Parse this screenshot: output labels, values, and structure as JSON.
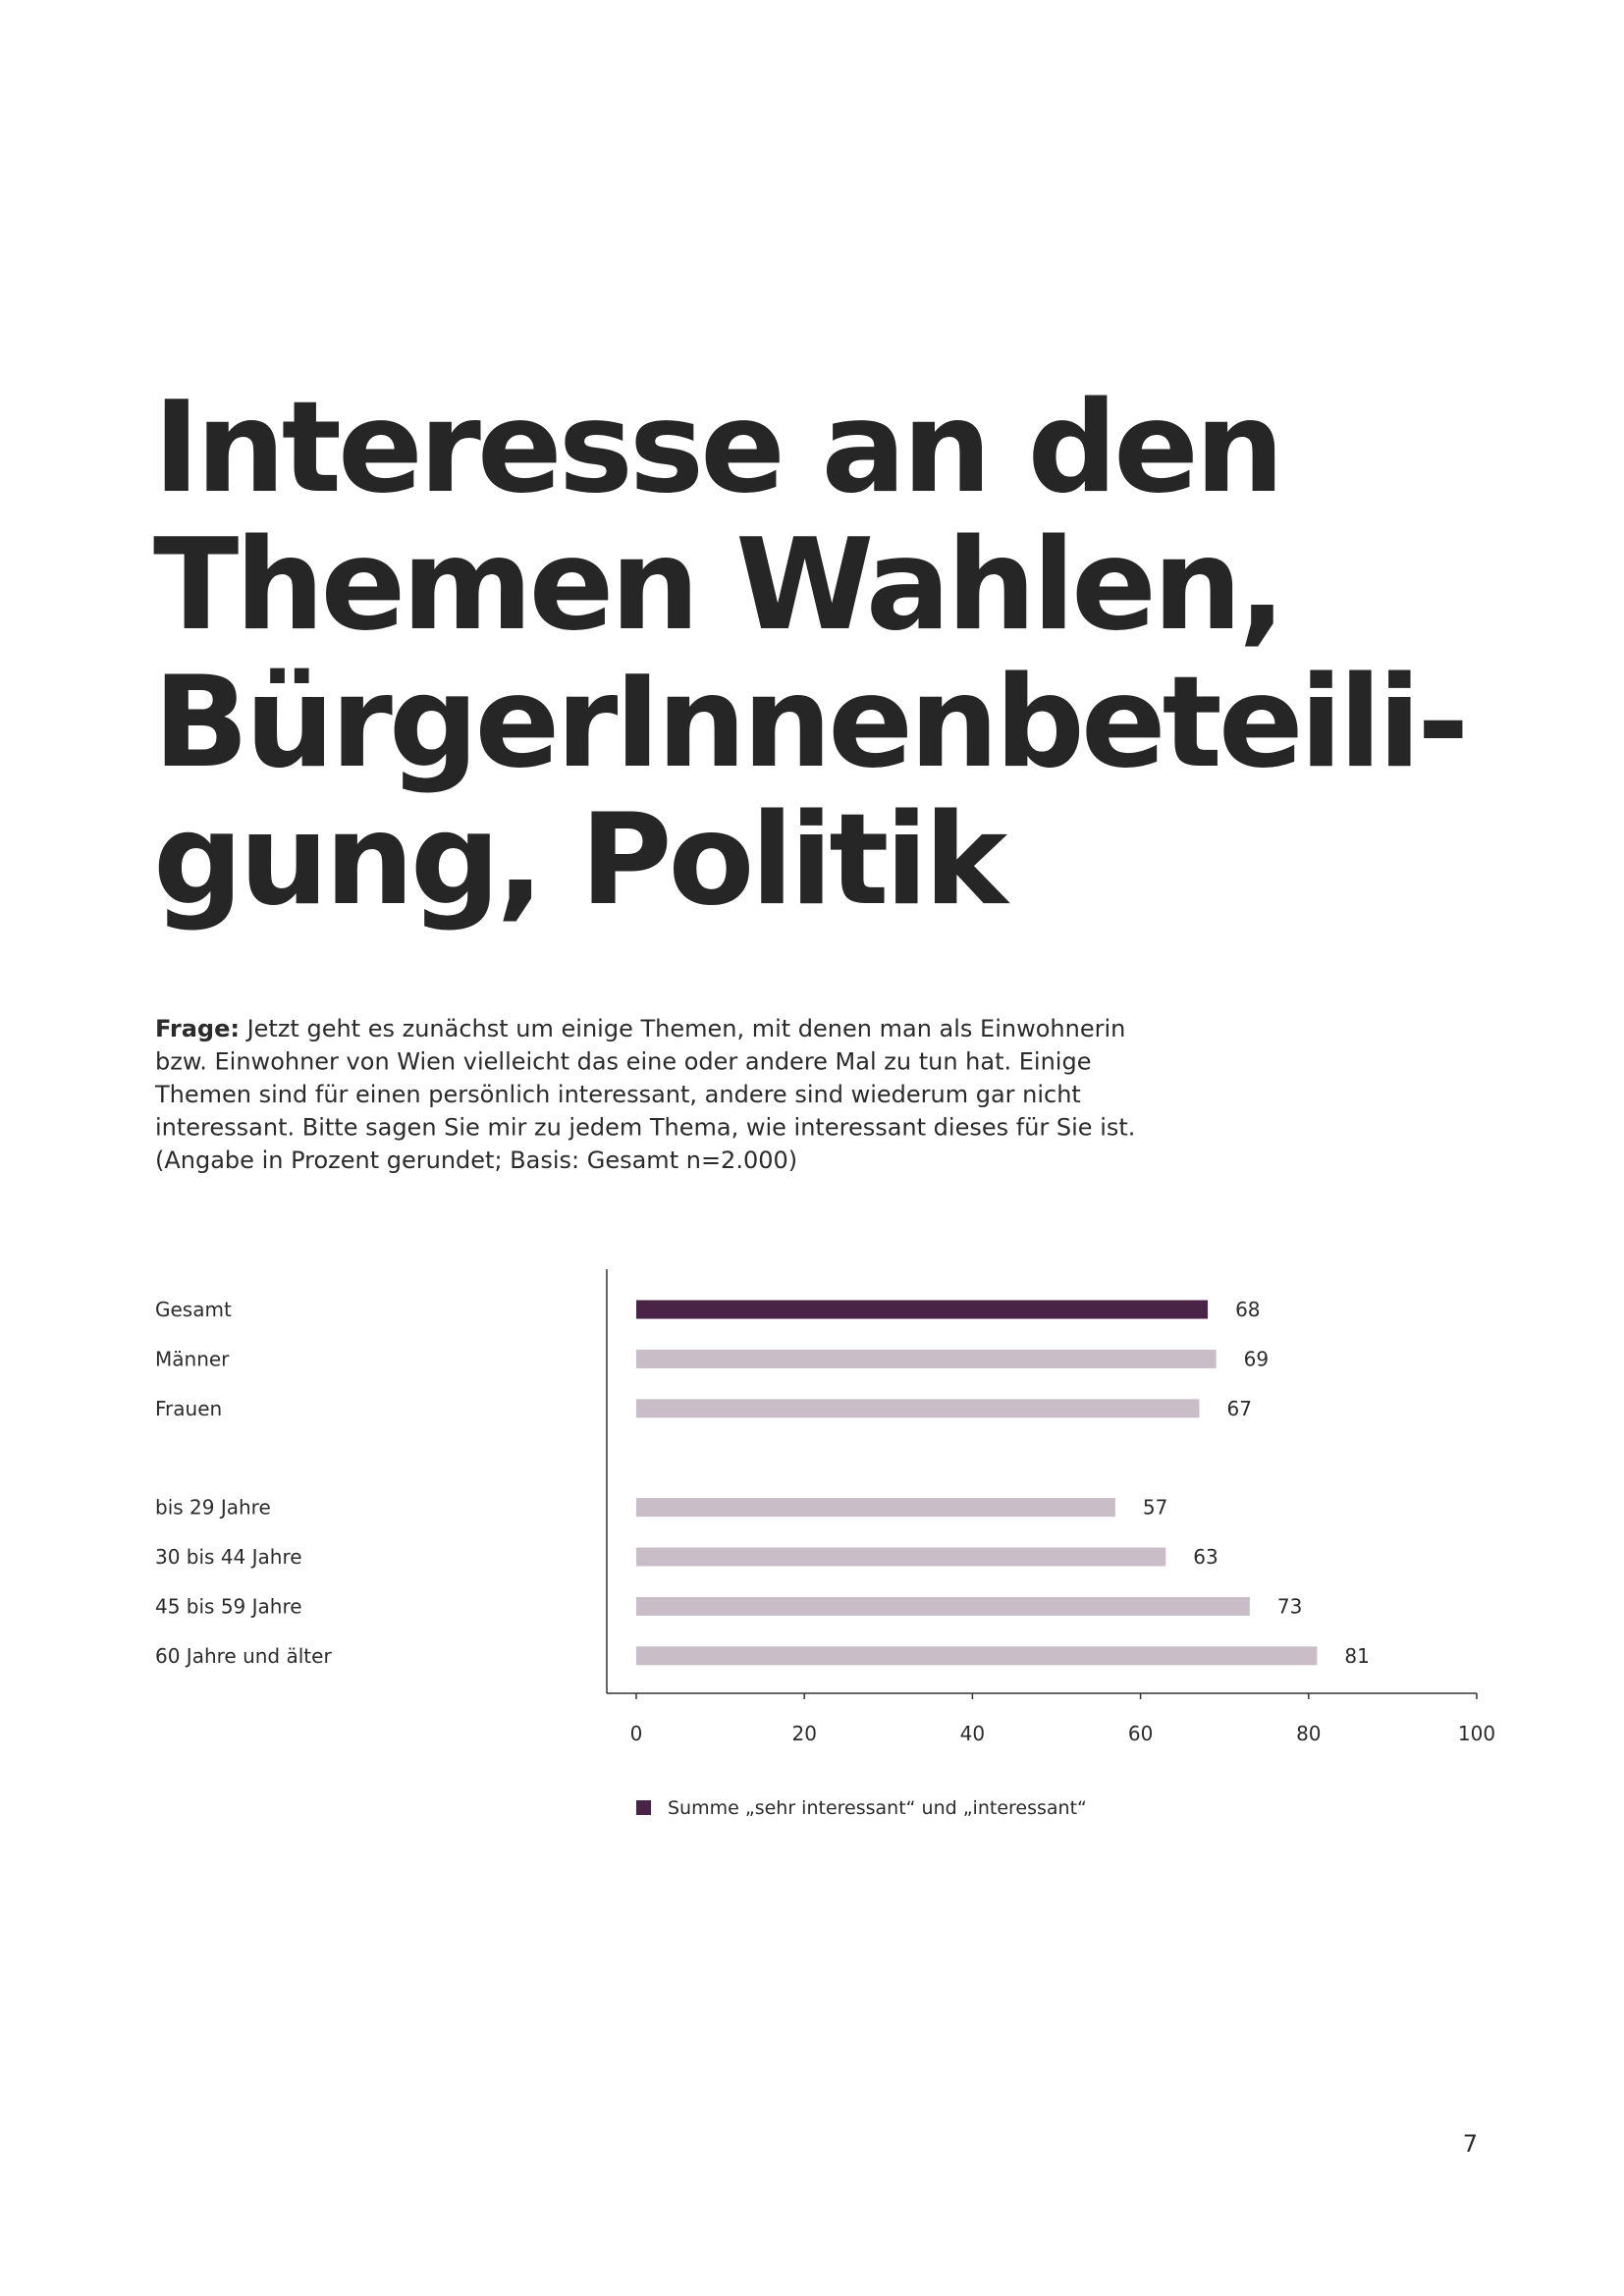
{
  "header": {
    "title_lines": [
      "Interesse an den",
      "Themen Wahlen,",
      "BürgerInnenbeteili-",
      "gung, Politik"
    ]
  },
  "question": {
    "label": "Frage:",
    "lines": [
      " Jetzt geht es zunächst um einige Themen, mit denen man als Einwohnerin",
      "bzw. Einwohner von Wien vielleicht das eine oder andere Mal zu tun hat. Einige",
      "Themen sind für einen persönlich interessant, andere sind wiederum gar nicht",
      "interessant. Bitte sagen Sie mir zu jedem Thema, wie interessant dieses für Sie ist.",
      "(Angabe in Prozent gerundet; Basis: Gesamt n=2.000)"
    ]
  },
  "chart_data": {
    "type": "hbar",
    "categories": [
      "Gesamt",
      "Männer",
      "Frauen",
      null,
      "bis 29 Jahre",
      "30 bis 44 Jahre",
      "45 bis 59 Jahre",
      "60 Jahre und älter"
    ],
    "values": [
      68,
      69,
      67,
      null,
      57,
      63,
      73,
      81
    ],
    "colors": [
      "#4a2447",
      "#c9bec8",
      "#c9bec8",
      null,
      "#c9bec8",
      "#c9bec8",
      "#c9bec8",
      "#c9bec8"
    ],
    "xlim": [
      0,
      100
    ],
    "xticks": [
      0,
      20,
      40,
      60,
      80,
      100
    ],
    "grid": false,
    "legend": {
      "label": "Summe „sehr interessant“ und „interessant“",
      "color": "#4a2447"
    }
  },
  "page_number": "7"
}
